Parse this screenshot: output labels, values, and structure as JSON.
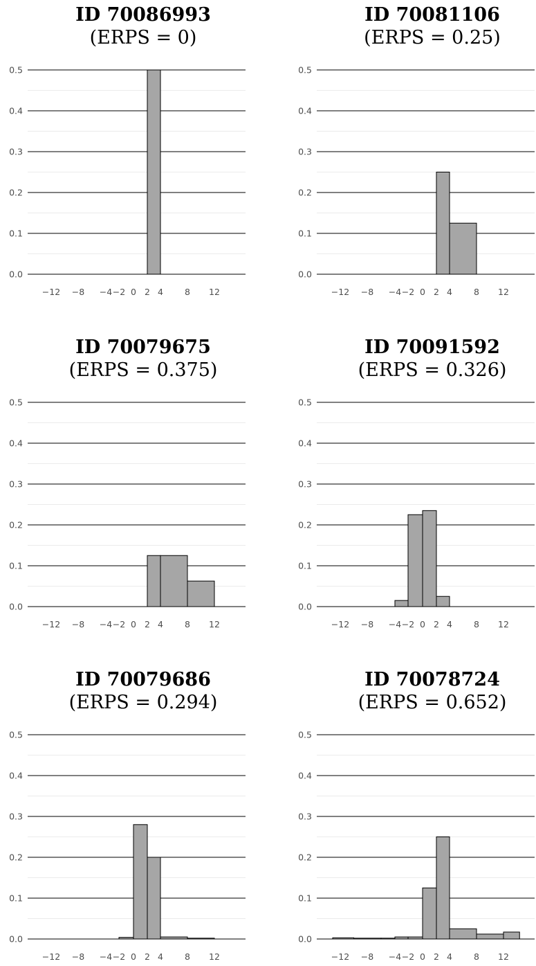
{
  "chart_data": [
    {
      "type": "bar",
      "title": "ID 70086993",
      "subtitle": "(ERPS = 0)",
      "bin_width": 4,
      "bars": [
        {
          "x0": -14,
          "x1": -10,
          "value": 0
        },
        {
          "x0": -10,
          "x1": -6,
          "value": 0
        },
        {
          "x0": -6,
          "x1": -2,
          "value": 0
        },
        {
          "x0": -2,
          "x1": 0,
          "value": 0
        },
        {
          "x0": 0,
          "x1": 2,
          "value": 0
        },
        {
          "x0": 2,
          "x1": 4,
          "value": 0.5
        },
        {
          "x0": 4,
          "x1": 8,
          "value": 0
        },
        {
          "x0": 8,
          "x1": 12,
          "value": 0
        },
        {
          "x0": 12,
          "x1": 16,
          "value": 0
        }
      ],
      "xticks": [
        "−12",
        "−8",
        "−4",
        "−2",
        "0",
        "2",
        "4",
        "8",
        "12"
      ],
      "yticks": [
        "0.0",
        "0.1",
        "0.2",
        "0.3",
        "0.4",
        "0.5"
      ],
      "ylim": [
        0,
        0.5
      ]
    },
    {
      "type": "bar",
      "title": "ID 70081106",
      "subtitle": "(ERPS = 0.25)",
      "bars": [
        {
          "x0": -14,
          "x1": -10,
          "value": 0
        },
        {
          "x0": -10,
          "x1": -6,
          "value": 0
        },
        {
          "x0": -6,
          "x1": -2,
          "value": 0
        },
        {
          "x0": -2,
          "x1": 0,
          "value": 0
        },
        {
          "x0": 0,
          "x1": 2,
          "value": 0
        },
        {
          "x0": 2,
          "x1": 4,
          "value": 0.25
        },
        {
          "x0": 4,
          "x1": 8,
          "value": 0.125
        },
        {
          "x0": 8,
          "x1": 12,
          "value": 0
        },
        {
          "x0": 12,
          "x1": 16,
          "value": 0
        }
      ],
      "xticks": [
        "−12",
        "−8",
        "−4",
        "−2",
        "0",
        "2",
        "4",
        "8",
        "12"
      ],
      "yticks": [
        "0.0",
        "0.1",
        "0.2",
        "0.3",
        "0.4",
        "0.5"
      ],
      "ylim": [
        0,
        0.5
      ]
    },
    {
      "type": "bar",
      "title": "ID 70079675",
      "subtitle": "(ERPS = 0.375)",
      "bars": [
        {
          "x0": -14,
          "x1": -10,
          "value": 0
        },
        {
          "x0": -10,
          "x1": -6,
          "value": 0
        },
        {
          "x0": -6,
          "x1": -2,
          "value": 0
        },
        {
          "x0": -2,
          "x1": 0,
          "value": 0
        },
        {
          "x0": 0,
          "x1": 2,
          "value": 0
        },
        {
          "x0": 2,
          "x1": 4,
          "value": 0.125
        },
        {
          "x0": 4,
          "x1": 8,
          "value": 0.125
        },
        {
          "x0": 8,
          "x1": 12,
          "value": 0.0625
        },
        {
          "x0": 12,
          "x1": 16,
          "value": 0
        }
      ],
      "xticks": [
        "−12",
        "−8",
        "−4",
        "−2",
        "0",
        "2",
        "4",
        "8",
        "12"
      ],
      "yticks": [
        "0.0",
        "0.1",
        "0.2",
        "0.3",
        "0.4",
        "0.5"
      ],
      "ylim": [
        0,
        0.5
      ]
    },
    {
      "type": "bar",
      "title": "ID 70091592",
      "subtitle": "(ERPS = 0.326)",
      "bars": [
        {
          "x0": -14,
          "x1": -10,
          "value": 0
        },
        {
          "x0": -10,
          "x1": -6,
          "value": 0
        },
        {
          "x0": -6,
          "x1": -4,
          "value": 0
        },
        {
          "x0": -4,
          "x1": -2,
          "value": 0.015
        },
        {
          "x0": -2,
          "x1": 0,
          "value": 0.225
        },
        {
          "x0": 0,
          "x1": 2,
          "value": 0.235
        },
        {
          "x0": 2,
          "x1": 4,
          "value": 0.025
        },
        {
          "x0": 4,
          "x1": 8,
          "value": 0
        },
        {
          "x0": 8,
          "x1": 12,
          "value": 0
        },
        {
          "x0": 12,
          "x1": 16,
          "value": 0
        }
      ],
      "xticks": [
        "−12",
        "−8",
        "−4",
        "−2",
        "0",
        "2",
        "4",
        "8",
        "12"
      ],
      "yticks": [
        "0.0",
        "0.1",
        "0.2",
        "0.3",
        "0.4",
        "0.5"
      ],
      "ylim": [
        0,
        0.5
      ]
    },
    {
      "type": "bar",
      "title": "ID 70079686",
      "subtitle": "(ERPS = 0.294)",
      "bars": [
        {
          "x0": -14,
          "x1": -10,
          "value": 0
        },
        {
          "x0": -10,
          "x1": -6,
          "value": 0
        },
        {
          "x0": -6,
          "x1": -4,
          "value": 0
        },
        {
          "x0": -4,
          "x1": -2,
          "value": 0
        },
        {
          "x0": -2,
          "x1": 0,
          "value": 0.004
        },
        {
          "x0": 0,
          "x1": 2,
          "value": 0.28
        },
        {
          "x0": 2,
          "x1": 4,
          "value": 0.2
        },
        {
          "x0": 4,
          "x1": 8,
          "value": 0.005
        },
        {
          "x0": 8,
          "x1": 12,
          "value": 0.002
        },
        {
          "x0": 12,
          "x1": 16,
          "value": 0
        }
      ],
      "xticks": [
        "−12",
        "−8",
        "−4",
        "−2",
        "0",
        "2",
        "4",
        "8",
        "12"
      ],
      "yticks": [
        "0.0",
        "0.1",
        "0.2",
        "0.3",
        "0.4",
        "0.5"
      ],
      "ylim": [
        0,
        0.5
      ]
    },
    {
      "type": "bar",
      "title": "ID 70078724",
      "subtitle": "(ERPS = 0.652)",
      "bars": [
        {
          "x0": -16,
          "x1": -14,
          "value": 0
        },
        {
          "x0": -14,
          "x1": -10,
          "value": 0.003
        },
        {
          "x0": -10,
          "x1": -6,
          "value": 0.002
        },
        {
          "x0": -6,
          "x1": -4,
          "value": 0.002
        },
        {
          "x0": -4,
          "x1": -2,
          "value": 0.005
        },
        {
          "x0": -2,
          "x1": 0,
          "value": 0.005
        },
        {
          "x0": 0,
          "x1": 2,
          "value": 0.125
        },
        {
          "x0": 2,
          "x1": 4,
          "value": 0.25
        },
        {
          "x0": 4,
          "x1": 8,
          "value": 0.025
        },
        {
          "x0": 8,
          "x1": 12,
          "value": 0.012
        },
        {
          "x0": 12,
          "x1": 15,
          "value": 0.017
        }
      ],
      "xticks": [
        "−12",
        "−8",
        "−4",
        "−2",
        "0",
        "2",
        "4",
        "8",
        "12"
      ],
      "yticks": [
        "0.0",
        "0.1",
        "0.2",
        "0.3",
        "0.4",
        "0.5"
      ],
      "ylim": [
        0,
        0.5
      ]
    }
  ],
  "colors": {
    "bar_fill": "#a6a6a6",
    "bar_stroke": "#000000",
    "major_grid": "#000000",
    "minor_grid": "#ebebeb",
    "tick_text": "#4d4d4d"
  }
}
